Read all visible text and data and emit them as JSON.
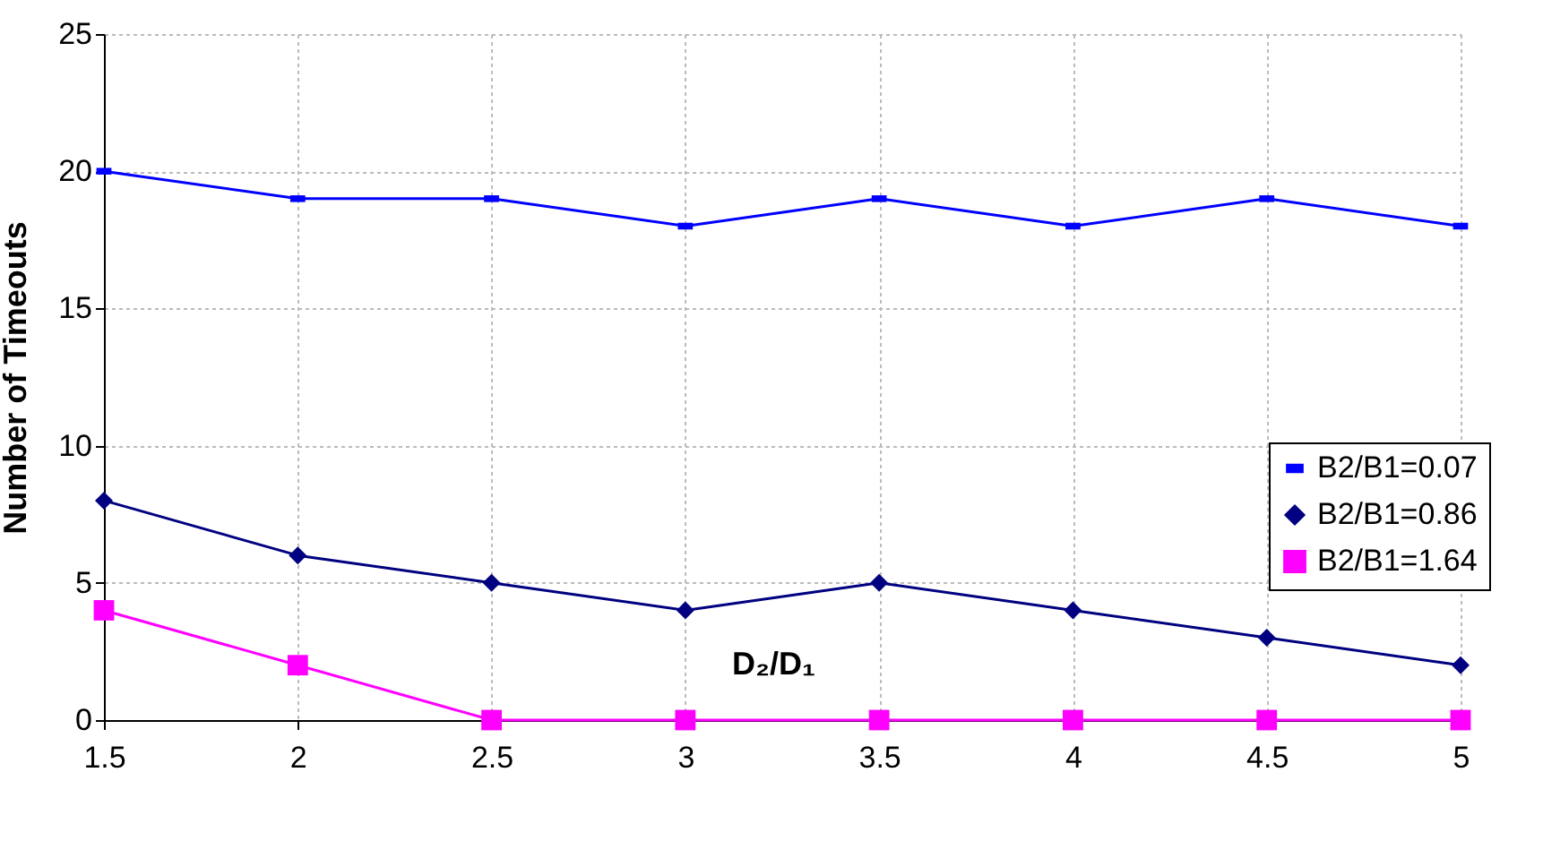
{
  "chart_data": {
    "type": "line",
    "xlabel": "D₂/D₁",
    "ylabel": "Number of Timeouts",
    "x": [
      1.5,
      2,
      2.5,
      3,
      3.5,
      4,
      4.5,
      5
    ],
    "series": [
      {
        "name": "B2/B1=0.07",
        "color": "#0000ff",
        "marker": "square",
        "values": [
          20,
          19,
          19,
          18,
          19,
          18,
          19,
          18
        ]
      },
      {
        "name": "B2/B1=0.86",
        "color": "#000080",
        "marker": "diamond",
        "values": [
          8,
          6,
          5,
          4,
          5,
          4,
          3,
          2
        ]
      },
      {
        "name": "B2/B1=1.64",
        "color": "#ff00ff",
        "marker": "square",
        "values": [
          4,
          2,
          0,
          0,
          0,
          0,
          0,
          0
        ]
      }
    ],
    "xlim": [
      1.5,
      5
    ],
    "xticks": [
      1.5,
      2,
      2.5,
      3,
      3.5,
      4,
      4.5,
      5
    ],
    "ylim": [
      0,
      25
    ],
    "yticks": [
      0,
      5,
      10,
      15,
      20,
      25
    ],
    "grid": true,
    "legend": "right",
    "line_style": "solid"
  }
}
